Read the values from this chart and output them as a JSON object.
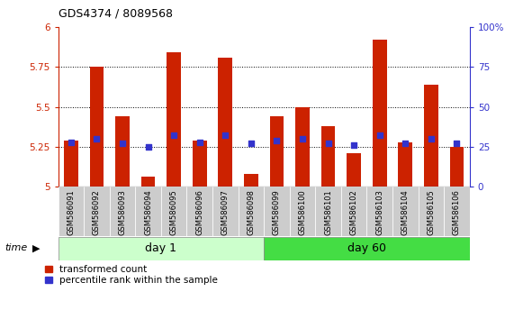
{
  "title": "GDS4374 / 8089568",
  "samples": [
    "GSM586091",
    "GSM586092",
    "GSM586093",
    "GSM586094",
    "GSM586095",
    "GSM586096",
    "GSM586097",
    "GSM586098",
    "GSM586099",
    "GSM586100",
    "GSM586101",
    "GSM586102",
    "GSM586103",
    "GSM586104",
    "GSM586105",
    "GSM586106"
  ],
  "bar_tops": [
    5.29,
    5.75,
    5.44,
    5.06,
    5.84,
    5.29,
    5.81,
    5.08,
    5.44,
    5.5,
    5.38,
    5.21,
    5.92,
    5.28,
    5.64,
    5.25
  ],
  "blue_dot_pct": [
    28,
    30,
    27,
    25,
    32,
    28,
    32,
    27,
    29,
    30,
    27,
    26,
    32,
    27,
    30,
    27
  ],
  "ylim": [
    5.0,
    6.0
  ],
  "y2lim": [
    0,
    100
  ],
  "yticks": [
    5.0,
    5.25,
    5.5,
    5.75,
    6.0
  ],
  "y2ticks": [
    0,
    25,
    50,
    75,
    100
  ],
  "ytick_labels": [
    "5",
    "5.25",
    "5.5",
    "5.75",
    "6"
  ],
  "y2tick_labels": [
    "0",
    "25",
    "50",
    "75",
    "100%"
  ],
  "bar_color": "#cc2200",
  "dot_color": "#3333cc",
  "day1_label": "day 1",
  "day60_label": "day 60",
  "day1_color": "#ccffcc",
  "day60_color": "#44dd44",
  "bar_bottom": 5.0,
  "bar_width": 0.55,
  "legend_red_label": "transformed count",
  "legend_blue_label": "percentile rank within the sample",
  "n_day1": 8,
  "n_day60": 8
}
